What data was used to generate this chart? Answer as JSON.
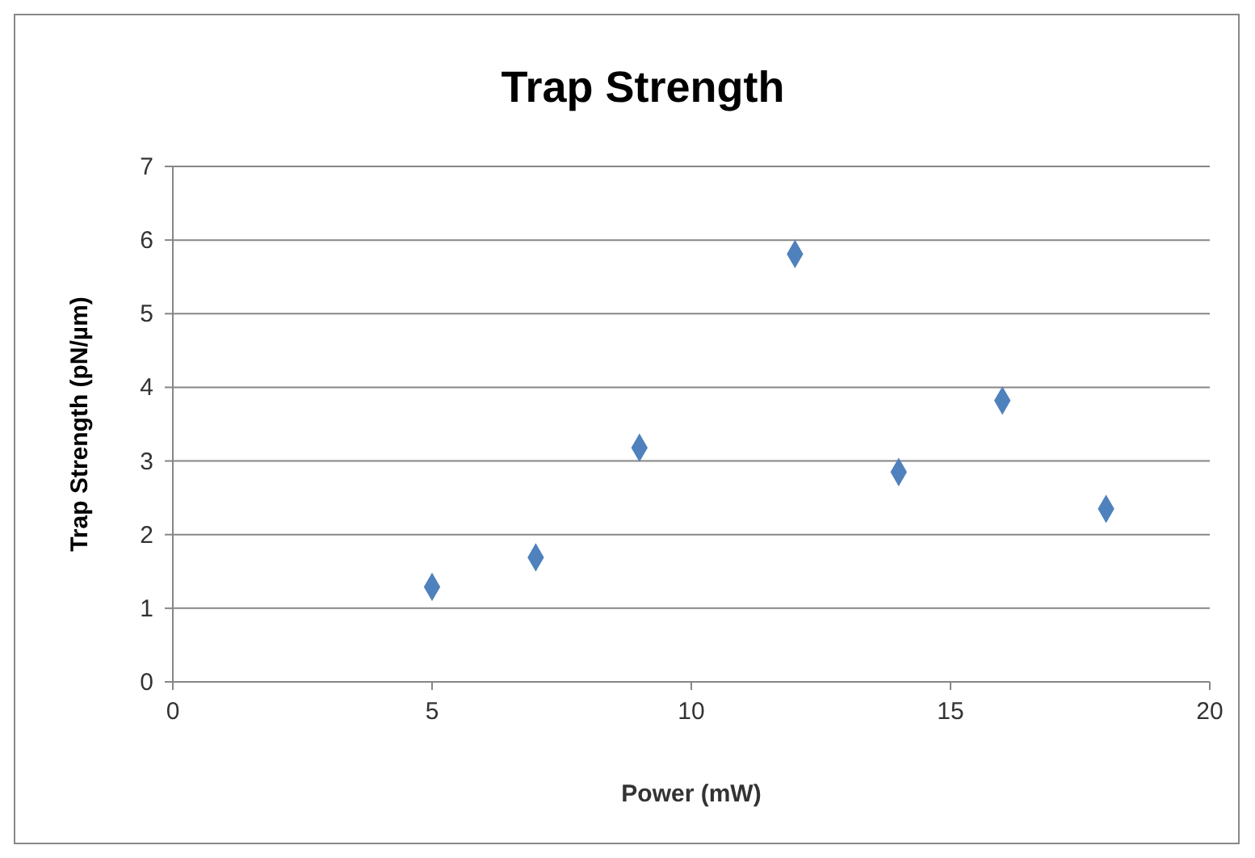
{
  "chart_data": {
    "type": "scatter",
    "title": "Trap Strength",
    "xlabel": "Power (mW)",
    "ylabel": "Trap Strength (pN/µm)",
    "x": [
      5,
      7,
      9,
      12,
      14,
      16,
      18
    ],
    "series": [
      {
        "color": "#4f81bd",
        "values": [
          1.29,
          1.69,
          3.18,
          5.81,
          2.85,
          3.82,
          2.35
        ]
      }
    ],
    "xlim": [
      0,
      20
    ],
    "xticks": [
      0,
      5,
      10,
      15,
      20
    ],
    "ylim": [
      0,
      7
    ],
    "yticks": [
      0,
      1,
      2,
      3,
      4,
      5,
      6,
      7
    ],
    "grid": "y",
    "marker": "diamond"
  }
}
